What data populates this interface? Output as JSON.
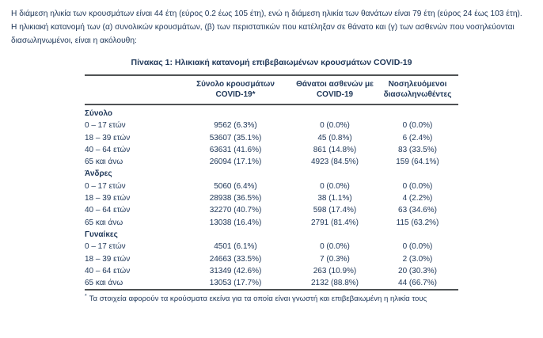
{
  "colors": {
    "text": "#21395a",
    "rule": "#4f5254",
    "background": "#ffffff"
  },
  "intro": {
    "sentence1": "Η διάμεση ηλικία των κρουσμάτων είναι 44 έτη (εύρος 0.2 έως 105 έτη), ενώ η διάμεση ηλικία των θανάτων είναι 79 έτη (εύρος 24 έως 103 έτη).",
    "sentence2": "Η ηλικιακή κατανομή των (α) συνολικών κρουσμάτων, (β) των περιστατικών που κατέληξαν σε θάνατο και (γ) των ασθενών που νοσηλεύονται διασωληνωμένοι, είναι η ακόλουθη:"
  },
  "table": {
    "title": "Πίνακας 1: Ηλικιακή κατανομή επιβεβαιωμένων κρουσμάτων COVID-19",
    "columns": [
      {
        "line1": "Σύνολο κρουσμάτων",
        "line2": "COVID-19*"
      },
      {
        "line1": "Θάνατοι ασθενών με",
        "line2": "COVID-19"
      },
      {
        "line1": "Νοσηλευόμενοι",
        "line2": "διασωληνωθέντες"
      }
    ],
    "sections": [
      {
        "label": "Σύνολο",
        "rows": [
          {
            "age": "0 – 17 ετών",
            "cases": "9562 (6.3%)",
            "deaths": "0 (0.0%)",
            "intubated": "0 (0.0%)"
          },
          {
            "age": "18 – 39 ετών",
            "cases": "53607 (35.1%)",
            "deaths": "45 (0.8%)",
            "intubated": "6 (2.4%)"
          },
          {
            "age": "40 – 64 ετών",
            "cases": "63631 (41.6%)",
            "deaths": "861 (14.8%)",
            "intubated": "83 (33.5%)"
          },
          {
            "age": "65 και άνω",
            "cases": "26094 (17.1%)",
            "deaths": "4923 (84.5%)",
            "intubated": "159 (64.1%)"
          }
        ]
      },
      {
        "label": "Άνδρες",
        "rows": [
          {
            "age": "0 – 17 ετών",
            "cases": "5060 (6.4%)",
            "deaths": "0 (0.0%)",
            "intubated": "0 (0.0%)"
          },
          {
            "age": "18 – 39 ετών",
            "cases": "28938 (36.5%)",
            "deaths": "38 (1.1%)",
            "intubated": "4 (2.2%)"
          },
          {
            "age": "40 – 64 ετών",
            "cases": "32270 (40.7%)",
            "deaths": "598 (17.4%)",
            "intubated": "63 (34.6%)"
          },
          {
            "age": "65 και άνω",
            "cases": "13038 (16.4%)",
            "deaths": "2791 (81.4%)",
            "intubated": "115 (63.2%)"
          }
        ]
      },
      {
        "label": "Γυναίκες",
        "rows": [
          {
            "age": "0 – 17 ετών",
            "cases": "4501 (6.1%)",
            "deaths": "0 (0.0%)",
            "intubated": "0 (0.0%)"
          },
          {
            "age": "18 – 39 ετών",
            "cases": "24663 (33.5%)",
            "deaths": "7 (0.3%)",
            "intubated": "2 (3.0%)"
          },
          {
            "age": "40 – 64 ετών",
            "cases": "31349 (42.6%)",
            "deaths": "263 (10.9%)",
            "intubated": "20 (30.3%)"
          },
          {
            "age": "65 και άνω",
            "cases": "13053 (17.7%)",
            "deaths": "2132 (88.8%)",
            "intubated": "44 (66.7%)"
          }
        ]
      }
    ],
    "footnote_marker": "*",
    "footnote": "Τα στοιχεία αφορούν τα κρούσματα εκείνα για τα οποία είναι γνωστή και επιβεβαιωμένη η ηλικία τους"
  }
}
